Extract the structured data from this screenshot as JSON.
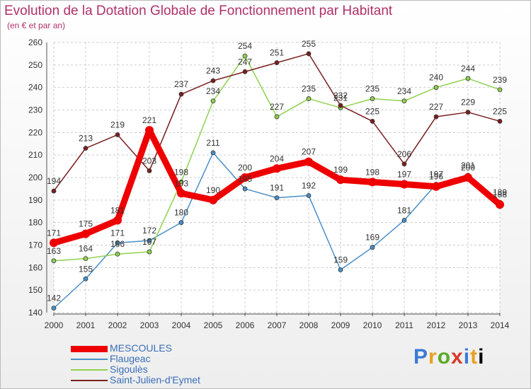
{
  "chart_data": {
    "type": "line",
    "title": "Evolution de la Dotation Globale de Fonctionnement par Habitant",
    "subtitle": "(en € et par an)",
    "x": [
      "2000",
      "2001",
      "2002",
      "2003",
      "2004",
      "2005",
      "2006",
      "2007",
      "2008",
      "2009",
      "2010",
      "2011",
      "2012",
      "2013",
      "2014"
    ],
    "ylim": [
      140,
      260
    ],
    "yticks": [
      140,
      150,
      160,
      170,
      180,
      190,
      200,
      210,
      220,
      230,
      240,
      250,
      260
    ],
    "grid": true,
    "legend_position": "bottom-left",
    "series": [
      {
        "name": "MESCOULES",
        "color": "#ee0000",
        "values": [
          171,
          175,
          181,
          221,
          193,
          190,
          200,
          204,
          207,
          199,
          198,
          197,
          196,
          200,
          188
        ]
      },
      {
        "name": "Flaugeac",
        "color": "#4a8fc8",
        "values": [
          142,
          155,
          171,
          172,
          180,
          211,
          195,
          191,
          192,
          159,
          169,
          181,
          197,
          201,
          189
        ]
      },
      {
        "name": "Sigoulès",
        "color": "#8fd14f",
        "values": [
          163,
          164,
          166,
          167,
          198,
          234,
          254,
          227,
          235,
          231,
          235,
          234,
          240,
          244,
          239
        ]
      },
      {
        "name": "Saint-Julien-d'Eymet",
        "color": "#7a1f1f",
        "values": [
          194,
          213,
          219,
          203,
          237,
          243,
          247,
          251,
          255,
          232,
          225,
          206,
          227,
          229,
          225
        ]
      }
    ]
  },
  "logo": {
    "letters": [
      "P",
      "r",
      "o",
      "x",
      "i",
      "t",
      "i"
    ]
  }
}
